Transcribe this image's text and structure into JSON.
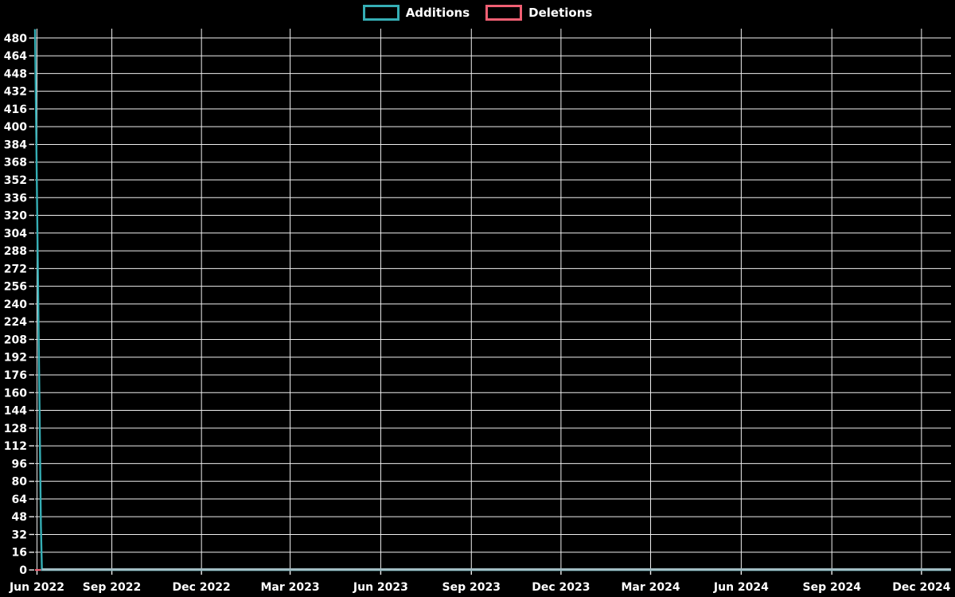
{
  "chart": {
    "background_color": "#000000",
    "grid_color": "#f0f0f0",
    "text_color": "#ffffff"
  },
  "chart_data": {
    "type": "line",
    "title": "",
    "xlabel": "",
    "ylabel": "",
    "grid": true,
    "legend_position": "top-center",
    "x_range": [
      "2022-06-15",
      "2024-12-31"
    ],
    "ylim": [
      0,
      488
    ],
    "y_tick_step": 16,
    "y_ticks": [
      0,
      16,
      32,
      48,
      64,
      80,
      96,
      112,
      128,
      144,
      160,
      176,
      192,
      208,
      224,
      240,
      256,
      272,
      288,
      304,
      320,
      336,
      352,
      368,
      384,
      400,
      416,
      432,
      448,
      464,
      480
    ],
    "x_ticks": [
      {
        "label": "Jun 2022",
        "date": "2022-06-17"
      },
      {
        "label": "Sep 2022",
        "date": "2022-09-01"
      },
      {
        "label": "Dec 2022",
        "date": "2022-12-01"
      },
      {
        "label": "Mar 2023",
        "date": "2023-03-01"
      },
      {
        "label": "Jun 2023",
        "date": "2023-06-01"
      },
      {
        "label": "Sep 2023",
        "date": "2023-09-01"
      },
      {
        "label": "Dec 2023",
        "date": "2023-12-01"
      },
      {
        "label": "Mar 2024",
        "date": "2024-03-01"
      },
      {
        "label": "Jun 2024",
        "date": "2024-06-01"
      },
      {
        "label": "Sep 2024",
        "date": "2024-09-01"
      },
      {
        "label": "Dec 2024",
        "date": "2024-12-01"
      }
    ],
    "series": [
      {
        "name": "Additions",
        "color": "#35aeb5",
        "points": [
          [
            "2022-06-15",
            488
          ],
          [
            "2022-06-21",
            39
          ],
          [
            "2022-06-22",
            0
          ],
          [
            "2024-12-31",
            0
          ]
        ]
      },
      {
        "name": "Deletions",
        "color": "#f05f73",
        "points": [
          [
            "2022-06-15",
            0
          ],
          [
            "2024-12-31",
            0
          ]
        ]
      }
    ],
    "zero_overlap_color": "#a4bec5"
  }
}
